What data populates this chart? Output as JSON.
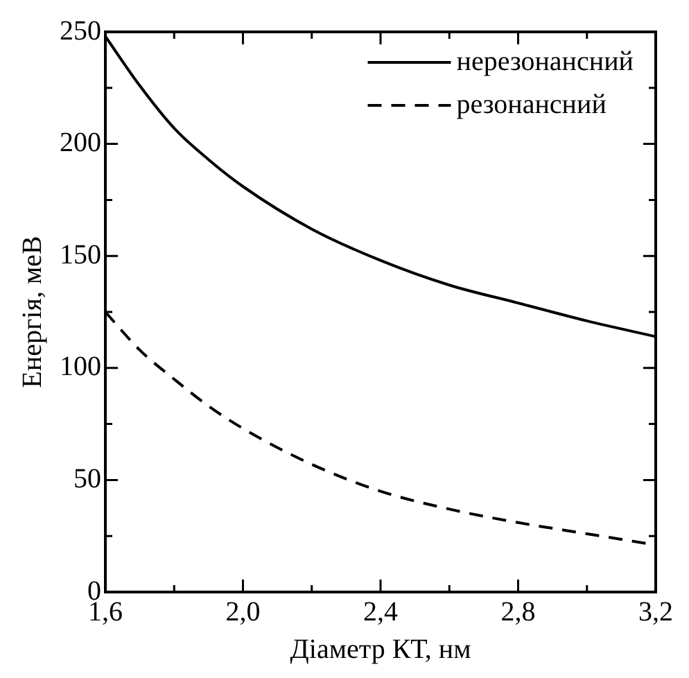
{
  "chart_data": {
    "type": "line",
    "xlabel": "Діаметр КТ, нм",
    "ylabel": "Енергія, меВ",
    "x": [
      1.6,
      1.7,
      1.8,
      1.9,
      2.0,
      2.2,
      2.4,
      2.6,
      2.8,
      3.0,
      3.2
    ],
    "series": [
      {
        "name": "нерезонансний",
        "color": "#000000",
        "line_style": "solid",
        "values": [
          248,
          226,
          207,
          193,
          181,
          162,
          148,
          137,
          129,
          121,
          114
        ]
      },
      {
        "name": "резонансний",
        "color": "#000000",
        "line_style": "dashed",
        "values": [
          125,
          108,
          95,
          83,
          73,
          57,
          45,
          37,
          31,
          26,
          21
        ]
      }
    ],
    "xlim": [
      1.6,
      3.2
    ],
    "xticks": [
      {
        "value": 1.6,
        "label": "1,6"
      },
      {
        "value": 1.8,
        "label": null
      },
      {
        "value": 2.0,
        "label": "2,0"
      },
      {
        "value": 2.2,
        "label": null
      },
      {
        "value": 2.4,
        "label": "2,4"
      },
      {
        "value": 2.6,
        "label": null
      },
      {
        "value": 2.8,
        "label": "2,8"
      },
      {
        "value": 3.0,
        "label": null
      },
      {
        "value": 3.2,
        "label": "3,2"
      }
    ],
    "ylim": [
      0,
      250
    ],
    "yticks": [
      0,
      {
        "value": 25,
        "label": null
      },
      50,
      {
        "value": 75,
        "label": null
      },
      100,
      {
        "value": 125,
        "label": null
      },
      150,
      {
        "value": 175,
        "label": null
      },
      200,
      {
        "value": 225,
        "label": null
      },
      250
    ],
    "grid": false,
    "legend": "top right",
    "marker": "none"
  }
}
